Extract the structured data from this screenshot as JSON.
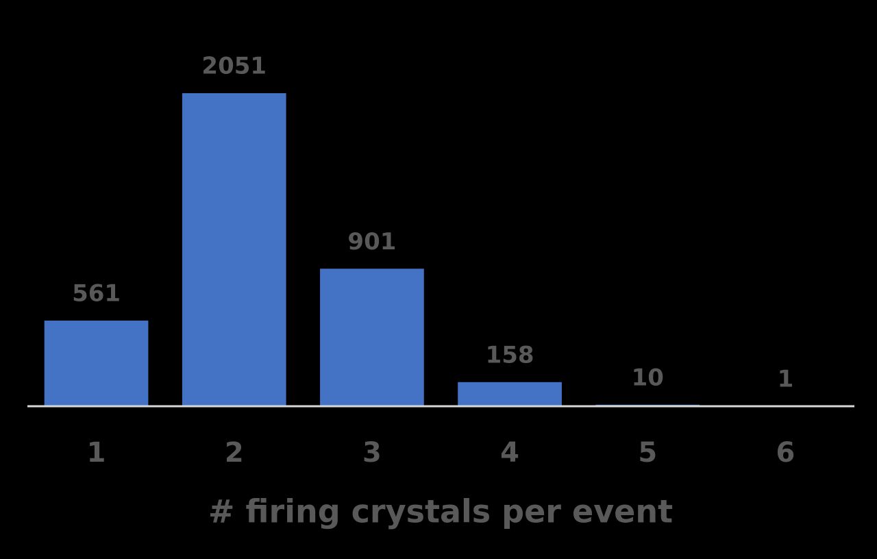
{
  "chart_data": {
    "type": "bar",
    "categories": [
      "1",
      "2",
      "3",
      "4",
      "5",
      "6"
    ],
    "values": [
      561,
      2051,
      901,
      158,
      10,
      1
    ],
    "color": "#4472c4",
    "xlabel": "# firing crystals per event",
    "ylim": [
      0,
      2500
    ]
  }
}
